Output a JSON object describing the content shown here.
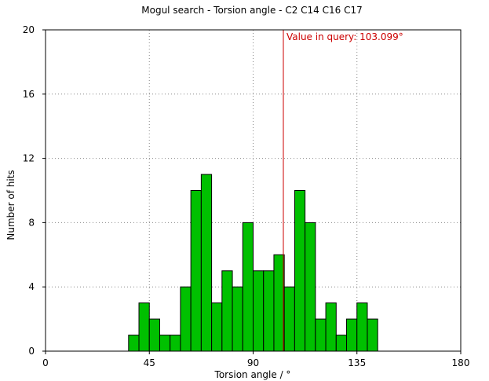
{
  "chart_data": {
    "type": "bar",
    "title": "Mogul search - Torsion angle - C2 C14 C16 C17",
    "xlabel": "Torsion angle / °",
    "ylabel": "Number of hits",
    "xlim": [
      0,
      180
    ],
    "ylim": [
      0,
      20
    ],
    "xticks": [
      0,
      45,
      90,
      135,
      180
    ],
    "yticks": [
      0,
      4,
      8,
      12,
      16,
      20
    ],
    "grid": true,
    "bin_width": 4.5,
    "bins": [
      {
        "x0": 36.0,
        "count": 1
      },
      {
        "x0": 40.5,
        "count": 3
      },
      {
        "x0": 45.0,
        "count": 2
      },
      {
        "x0": 49.5,
        "count": 1
      },
      {
        "x0": 54.0,
        "count": 1
      },
      {
        "x0": 58.5,
        "count": 4
      },
      {
        "x0": 63.0,
        "count": 10
      },
      {
        "x0": 67.5,
        "count": 11
      },
      {
        "x0": 72.0,
        "count": 3
      },
      {
        "x0": 76.5,
        "count": 5
      },
      {
        "x0": 81.0,
        "count": 4
      },
      {
        "x0": 85.5,
        "count": 8
      },
      {
        "x0": 90.0,
        "count": 5
      },
      {
        "x0": 94.5,
        "count": 5
      },
      {
        "x0": 99.0,
        "count": 6
      },
      {
        "x0": 103.5,
        "count": 4
      },
      {
        "x0": 108.0,
        "count": 10
      },
      {
        "x0": 112.5,
        "count": 8
      },
      {
        "x0": 117.0,
        "count": 2
      },
      {
        "x0": 121.5,
        "count": 3
      },
      {
        "x0": 126.0,
        "count": 1
      },
      {
        "x0": 130.5,
        "count": 2
      },
      {
        "x0": 135.0,
        "count": 3
      },
      {
        "x0": 139.5,
        "count": 2
      }
    ],
    "query_value": 103.099,
    "annotation": "Value in query: 103.099°",
    "colors": {
      "bar": "#00c000",
      "bar_edge": "#000000",
      "query_line": "#cc0000",
      "grid": "#888888"
    }
  }
}
